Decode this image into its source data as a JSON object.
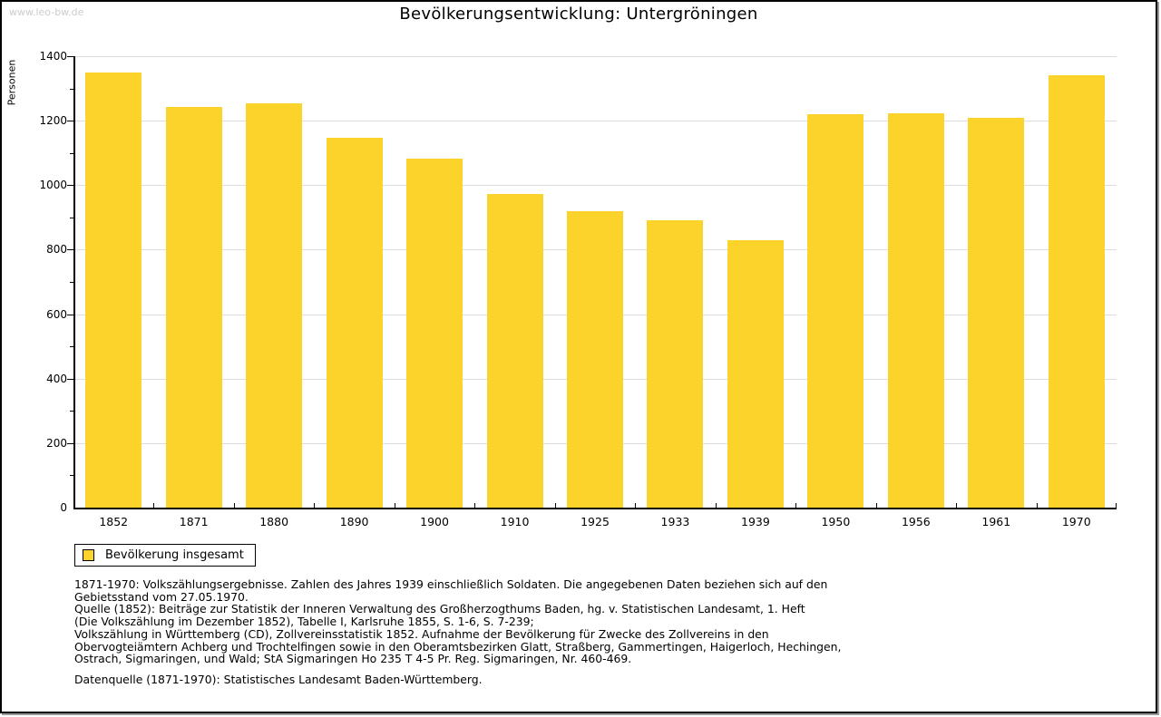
{
  "watermark": "www.leo-bw.de",
  "title": "Bevölkerungsentwicklung: Untergröningen",
  "chart_data": {
    "type": "bar",
    "title": "Bevölkerungsentwicklung: Untergröningen",
    "xlabel": "",
    "ylabel": "Personen",
    "categories": [
      "1852",
      "1871",
      "1880",
      "1890",
      "1900",
      "1910",
      "1925",
      "1933",
      "1939",
      "1950",
      "1956",
      "1961",
      "1970"
    ],
    "values": [
      1350,
      1243,
      1254,
      1147,
      1082,
      972,
      920,
      890,
      830,
      1221,
      1224,
      1210,
      1340
    ],
    "ylim": [
      0,
      1400
    ],
    "ytick_step": 200,
    "minor_tick_step": 100,
    "ytick_labels": [
      "0",
      "200",
      "400",
      "600",
      "800",
      "1000",
      "1200",
      "1400"
    ],
    "grid": true,
    "bar_color": "#fcd32b",
    "legend_position": "bottom-left",
    "legend_entries": [
      "Bevölkerung insgesamt"
    ]
  },
  "legend": {
    "label": "Bevölkerung insgesamt"
  },
  "footnotes": {
    "lines": [
      "1871-1970: Volkszählungsergebnisse. Zahlen des Jahres 1939 einschließlich Soldaten. Die angegebenen Daten beziehen sich auf den",
      "Gebietsstand vom 27.05.1970.",
      "Quelle (1852): Beiträge zur Statistik der Inneren Verwaltung des Großherzogthums Baden, hg. v. Statistischen Landesamt, 1. Heft",
      "(Die Volkszählung im Dezember 1852), Tabelle I, Karlsruhe 1855, S. 1-6, S. 7-239;",
      "Volkszählung in Württemberg (CD), Zollvereinsstatistik 1852. Aufnahme der Bevölkerung für Zwecke des Zollvereins in den",
      "Obervogteiämtern Achberg und Trochtelfingen sowie in den Oberamtsbezirken Glatt, Straßberg, Gammertingen, Haigerloch, Hechingen,",
      "Ostrach, Sigmaringen, und Wald; StA Sigmaringen Ho 235 T 4-5 Pr. Reg. Sigmaringen, Nr. 460-469."
    ],
    "datasource": "Datenquelle (1871-1970): Statistisches Landesamt Baden-Württemberg."
  }
}
